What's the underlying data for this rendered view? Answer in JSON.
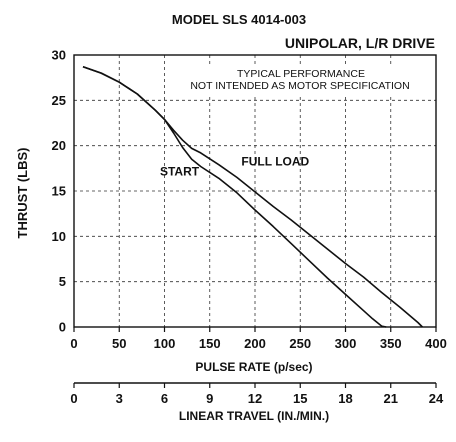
{
  "chart_data": {
    "type": "line",
    "title": "MODEL SLS 4014-003",
    "subtitle": "UNIPOLAR, L/R DRIVE",
    "notes": [
      "TYPICAL PERFORMANCE",
      "NOT INTENDED AS MOTOR SPECIFICATION"
    ],
    "xlabel": "PULSE RATE (p/sec)",
    "ylabel": "THRUST (LBS)",
    "x2label": "LINEAR TRAVEL (IN./MIN.)",
    "xlim": [
      0,
      400
    ],
    "ylim": [
      0,
      30
    ],
    "x2lim": [
      0,
      24
    ],
    "x_ticks": [
      0,
      50,
      100,
      150,
      200,
      250,
      300,
      350,
      400
    ],
    "y_ticks": [
      0,
      5,
      10,
      15,
      20,
      25,
      30
    ],
    "x2_ticks": [
      0,
      3,
      6,
      9,
      12,
      15,
      18,
      21,
      24
    ],
    "grid": true,
    "annotations": [
      {
        "text": "START",
        "x": 95,
        "y": 16.7
      },
      {
        "text": "FULL LOAD",
        "x": 185,
        "y": 17.8
      }
    ],
    "series": [
      {
        "name": "START",
        "x": [
          10,
          30,
          50,
          70,
          90,
          100,
          110,
          120,
          130,
          140,
          160,
          180,
          200,
          220,
          240,
          260,
          280,
          300,
          320,
          330,
          340,
          345
        ],
        "y": [
          28.7,
          28,
          27,
          25.7,
          23.9,
          22.9,
          21.4,
          19.8,
          18.5,
          17.7,
          16.4,
          14.8,
          12.9,
          11.1,
          9.2,
          7.3,
          5.4,
          3.6,
          1.8,
          0.9,
          0.1,
          0
        ]
      },
      {
        "name": "FULL LOAD",
        "x": [
          10,
          30,
          50,
          70,
          90,
          100,
          110,
          120,
          130,
          140,
          160,
          180,
          200,
          220,
          240,
          260,
          280,
          300,
          320,
          340,
          360,
          380,
          385
        ],
        "y": [
          28.7,
          28,
          27,
          25.7,
          23.9,
          22.9,
          21.7,
          20.6,
          19.7,
          19.2,
          17.9,
          16.5,
          14.9,
          13.3,
          11.8,
          10.2,
          8.6,
          7.0,
          5.5,
          3.8,
          2.2,
          0.5,
          0
        ]
      }
    ]
  }
}
